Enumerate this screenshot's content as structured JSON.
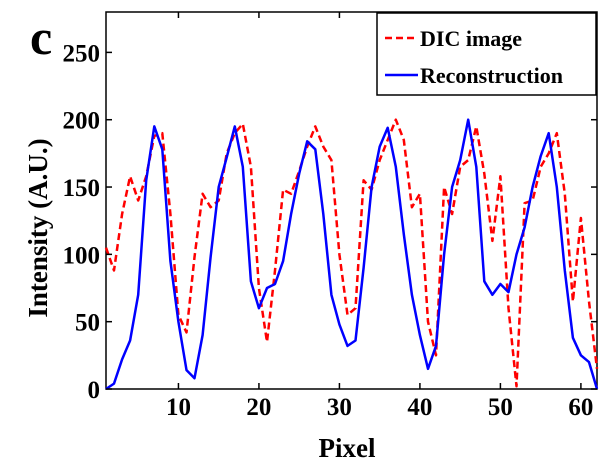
{
  "panel_label": "c",
  "chart_data": {
    "type": "line",
    "xlabel": "Pixel",
    "ylabel": "Intensity (A.U.)",
    "xlim": [
      1,
      62
    ],
    "ylim": [
      0,
      280
    ],
    "xticks": [
      10,
      20,
      30,
      40,
      50,
      60
    ],
    "yticks": [
      0,
      50,
      100,
      150,
      200,
      250
    ],
    "grid": false,
    "legend_position": "top-right",
    "series": [
      {
        "name": "DIC image",
        "color": "#ff0000",
        "style": "dashed",
        "x": [
          1,
          2,
          3,
          4,
          5,
          6,
          7,
          8,
          9,
          10,
          11,
          12,
          13,
          14,
          15,
          16,
          17,
          18,
          19,
          20,
          21,
          22,
          23,
          24,
          25,
          26,
          27,
          28,
          29,
          30,
          31,
          32,
          33,
          34,
          35,
          36,
          37,
          38,
          39,
          40,
          41,
          42,
          43,
          44,
          45,
          46,
          47,
          48,
          49,
          50,
          51,
          52,
          53,
          54,
          55,
          56,
          57,
          58,
          59,
          60,
          61,
          62
        ],
        "y": [
          105,
          88,
          130,
          158,
          140,
          158,
          188,
          190,
          130,
          55,
          42,
          98,
          145,
          135,
          140,
          175,
          190,
          197,
          165,
          75,
          35,
          88,
          148,
          145,
          162,
          180,
          195,
          180,
          170,
          100,
          55,
          60,
          155,
          148,
          170,
          185,
          200,
          185,
          135,
          145,
          50,
          25,
          150,
          130,
          165,
          170,
          195,
          160,
          110,
          158,
          60,
          2,
          138,
          140,
          165,
          175,
          190,
          145,
          65,
          127,
          65,
          15
        ]
      },
      {
        "name": "Reconstruction",
        "color": "#0000ff",
        "style": "solid",
        "x": [
          1,
          2,
          3,
          4,
          5,
          6,
          7,
          8,
          9,
          10,
          11,
          12,
          13,
          14,
          15,
          16,
          17,
          18,
          19,
          20,
          21,
          22,
          23,
          24,
          25,
          26,
          27,
          28,
          29,
          30,
          31,
          32,
          33,
          34,
          35,
          36,
          37,
          38,
          39,
          40,
          41,
          42,
          43,
          44,
          45,
          46,
          47,
          48,
          49,
          50,
          51,
          52,
          53,
          54,
          55,
          56,
          57,
          58,
          59,
          60,
          61,
          62
        ],
        "y": [
          0,
          4,
          22,
          36,
          70,
          155,
          195,
          178,
          95,
          50,
          14,
          8,
          40,
          98,
          150,
          172,
          195,
          165,
          80,
          60,
          75,
          78,
          95,
          130,
          160,
          184,
          178,
          130,
          70,
          48,
          32,
          36,
          90,
          150,
          180,
          194,
          165,
          115,
          70,
          40,
          15,
          32,
          100,
          150,
          170,
          200,
          165,
          80,
          70,
          78,
          72,
          100,
          120,
          150,
          173,
          190,
          150,
          88,
          38,
          25,
          20,
          0
        ]
      }
    ]
  }
}
